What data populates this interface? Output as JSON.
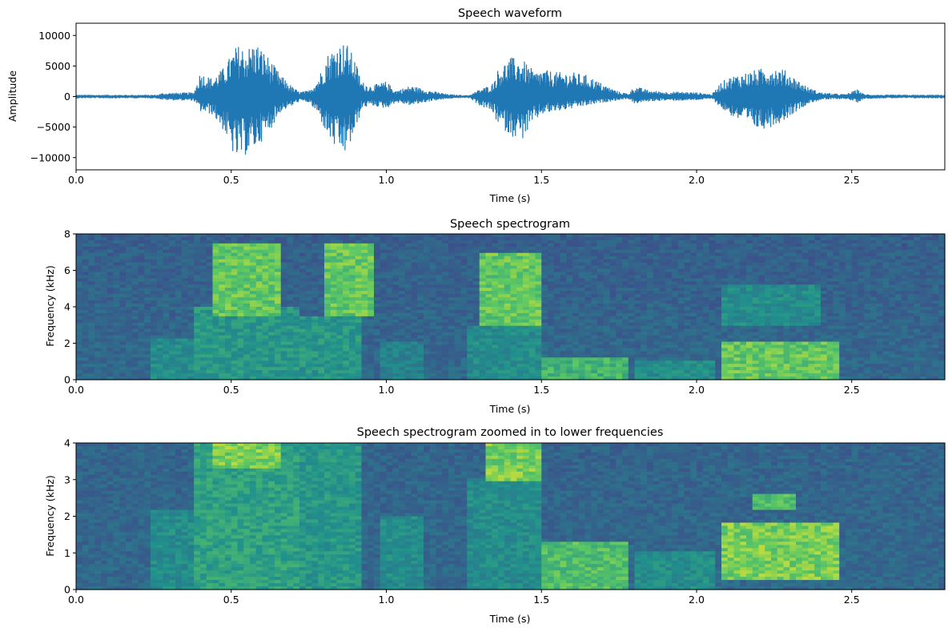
{
  "colors": {
    "waveform_line": "#1f77b4",
    "spectrogram_colormap": "viridis"
  },
  "chart_data": [
    {
      "type": "line",
      "title": "Speech waveform",
      "xlabel": "Time (s)",
      "ylabel": "Amplitude",
      "xlim": [
        0.0,
        2.8
      ],
      "ylim": [
        -12000,
        12000
      ],
      "xticks": [
        "0.0",
        "0.5",
        "1.0",
        "1.5",
        "2.0",
        "2.5"
      ],
      "yticks": [
        "−10000",
        "−5000",
        "0",
        "5000",
        "10000"
      ],
      "grid": false,
      "series": [
        {
          "values_description_x": "time (s)",
          "envelope_x": [
            0.0,
            0.26,
            0.28,
            0.38,
            0.4,
            0.44,
            0.48,
            0.5,
            0.52,
            0.55,
            0.58,
            0.62,
            0.66,
            0.7,
            0.72,
            0.75,
            0.78,
            0.81,
            0.84,
            0.87,
            0.9,
            0.92,
            0.95,
            1.0,
            1.03,
            1.08,
            1.14,
            1.2,
            1.25,
            1.27,
            1.3,
            1.34,
            1.36,
            1.4,
            1.44,
            1.48,
            1.5,
            1.55,
            1.6,
            1.65,
            1.7,
            1.75,
            1.78,
            1.8,
            1.85,
            1.9,
            1.95,
            2.0,
            2.05,
            2.08,
            2.12,
            2.16,
            2.2,
            2.24,
            2.28,
            2.32,
            2.36,
            2.4,
            2.44,
            2.48,
            2.52,
            2.54,
            2.6,
            2.8
          ],
          "envelope_upper": [
            300,
            300,
            600,
            700,
            4000,
            3000,
            5000,
            7000,
            8500,
            8000,
            9000,
            6500,
            3500,
            1500,
            800,
            1000,
            3000,
            7000,
            8500,
            9000,
            6000,
            2500,
            1800,
            2500,
            1000,
            1800,
            1000,
            400,
            200,
            300,
            1200,
            2000,
            4500,
            6500,
            6000,
            4000,
            4500,
            4000,
            4000,
            3500,
            2000,
            800,
            500,
            1700,
            1000,
            800,
            800,
            700,
            400,
            2500,
            3500,
            4000,
            4500,
            5000,
            4500,
            3000,
            1500,
            700,
            500,
            400,
            1200,
            400,
            300,
            300
          ],
          "envelope_lower": [
            -300,
            -300,
            -600,
            -700,
            -2500,
            -3000,
            -6000,
            -9000,
            -10500,
            -9500,
            -8500,
            -6000,
            -2500,
            -1500,
            -800,
            -1000,
            -3000,
            -6500,
            -9000,
            -9500,
            -6000,
            -2000,
            -1500,
            -2000,
            -1000,
            -1500,
            -800,
            -400,
            -200,
            -300,
            -1500,
            -2500,
            -4500,
            -6500,
            -7000,
            -4000,
            -3000,
            -2500,
            -2000,
            -1500,
            -1000,
            -600,
            -400,
            -1200,
            -800,
            -700,
            -700,
            -600,
            -400,
            -2000,
            -3500,
            -4500,
            -5500,
            -5000,
            -4000,
            -2500,
            -1200,
            -600,
            -500,
            -400,
            -1000,
            -400,
            -300,
            -300
          ]
        }
      ]
    },
    {
      "type": "heatmap",
      "title": "Speech spectrogram",
      "xlabel": "Time (s)",
      "ylabel": "Frequency (kHz)",
      "xlim": [
        0.0,
        2.8
      ],
      "ylim": [
        0,
        8
      ],
      "xticks": [
        "0.0",
        "0.5",
        "1.0",
        "1.5",
        "2.0",
        "2.5"
      ],
      "yticks": [
        "0",
        "2",
        "4",
        "6",
        "8"
      ],
      "colormap": "viridis",
      "energy_regions": [
        {
          "t": [
            0.25,
            0.37
          ],
          "f": [
            0.0,
            2.2
          ],
          "level": 0.55
        },
        {
          "t": [
            0.38,
            0.72
          ],
          "f": [
            0.0,
            4.0
          ],
          "level": 0.6
        },
        {
          "t": [
            0.45,
            0.65
          ],
          "f": [
            3.5,
            7.5
          ],
          "level": 0.85
        },
        {
          "t": [
            0.73,
            0.92
          ],
          "f": [
            0.0,
            3.5
          ],
          "level": 0.6
        },
        {
          "t": [
            0.8,
            0.95
          ],
          "f": [
            3.5,
            7.5
          ],
          "level": 0.85
        },
        {
          "t": [
            0.98,
            1.12
          ],
          "f": [
            0.0,
            2.0
          ],
          "level": 0.5
        },
        {
          "t": [
            1.3,
            1.5
          ],
          "f": [
            3.0,
            7.0
          ],
          "level": 0.85
        },
        {
          "t": [
            1.26,
            1.5
          ],
          "f": [
            0.0,
            3.0
          ],
          "level": 0.55
        },
        {
          "t": [
            1.5,
            1.78
          ],
          "f": [
            0.0,
            1.3
          ],
          "level": 0.75
        },
        {
          "t": [
            1.79,
            2.05
          ],
          "f": [
            0.0,
            1.0
          ],
          "level": 0.55
        },
        {
          "t": [
            2.08,
            2.45
          ],
          "f": [
            0.0,
            2.0
          ],
          "level": 0.85
        },
        {
          "t": [
            2.08,
            2.4
          ],
          "f": [
            3.0,
            5.3
          ],
          "level": 0.55
        }
      ]
    },
    {
      "type": "heatmap",
      "title": "Speech spectrogram zoomed in to lower frequencies",
      "xlabel": "Time (s)",
      "ylabel": "Frequency (kHz)",
      "xlim": [
        0.0,
        2.8
      ],
      "ylim": [
        0,
        4
      ],
      "xticks": [
        "0.0",
        "0.5",
        "1.0",
        "1.5",
        "2.0",
        "2.5"
      ],
      "yticks": [
        "0",
        "1",
        "2",
        "3",
        "4"
      ],
      "colormap": "viridis",
      "energy_regions": [
        {
          "t": [
            0.25,
            0.37
          ],
          "f": [
            0.0,
            2.2
          ],
          "level": 0.55
        },
        {
          "t": [
            0.38,
            0.72
          ],
          "f": [
            0.0,
            4.0
          ],
          "level": 0.65
        },
        {
          "t": [
            0.45,
            0.65
          ],
          "f": [
            3.3,
            4.0
          ],
          "level": 0.9
        },
        {
          "t": [
            0.73,
            0.92
          ],
          "f": [
            0.0,
            4.0
          ],
          "level": 0.6
        },
        {
          "t": [
            0.98,
            1.12
          ],
          "f": [
            0.0,
            2.0
          ],
          "level": 0.55
        },
        {
          "t": [
            1.32,
            1.5
          ],
          "f": [
            3.0,
            4.0
          ],
          "level": 0.9
        },
        {
          "t": [
            1.26,
            1.5
          ],
          "f": [
            0.0,
            3.0
          ],
          "level": 0.55
        },
        {
          "t": [
            1.5,
            1.78
          ],
          "f": [
            0.0,
            1.3
          ],
          "level": 0.8
        },
        {
          "t": [
            1.79,
            2.05
          ],
          "f": [
            0.0,
            1.0
          ],
          "level": 0.55
        },
        {
          "t": [
            2.08,
            2.45
          ],
          "f": [
            0.3,
            1.8
          ],
          "level": 0.9
        },
        {
          "t": [
            2.18,
            2.32
          ],
          "f": [
            2.2,
            2.6
          ],
          "level": 0.8
        }
      ]
    }
  ]
}
